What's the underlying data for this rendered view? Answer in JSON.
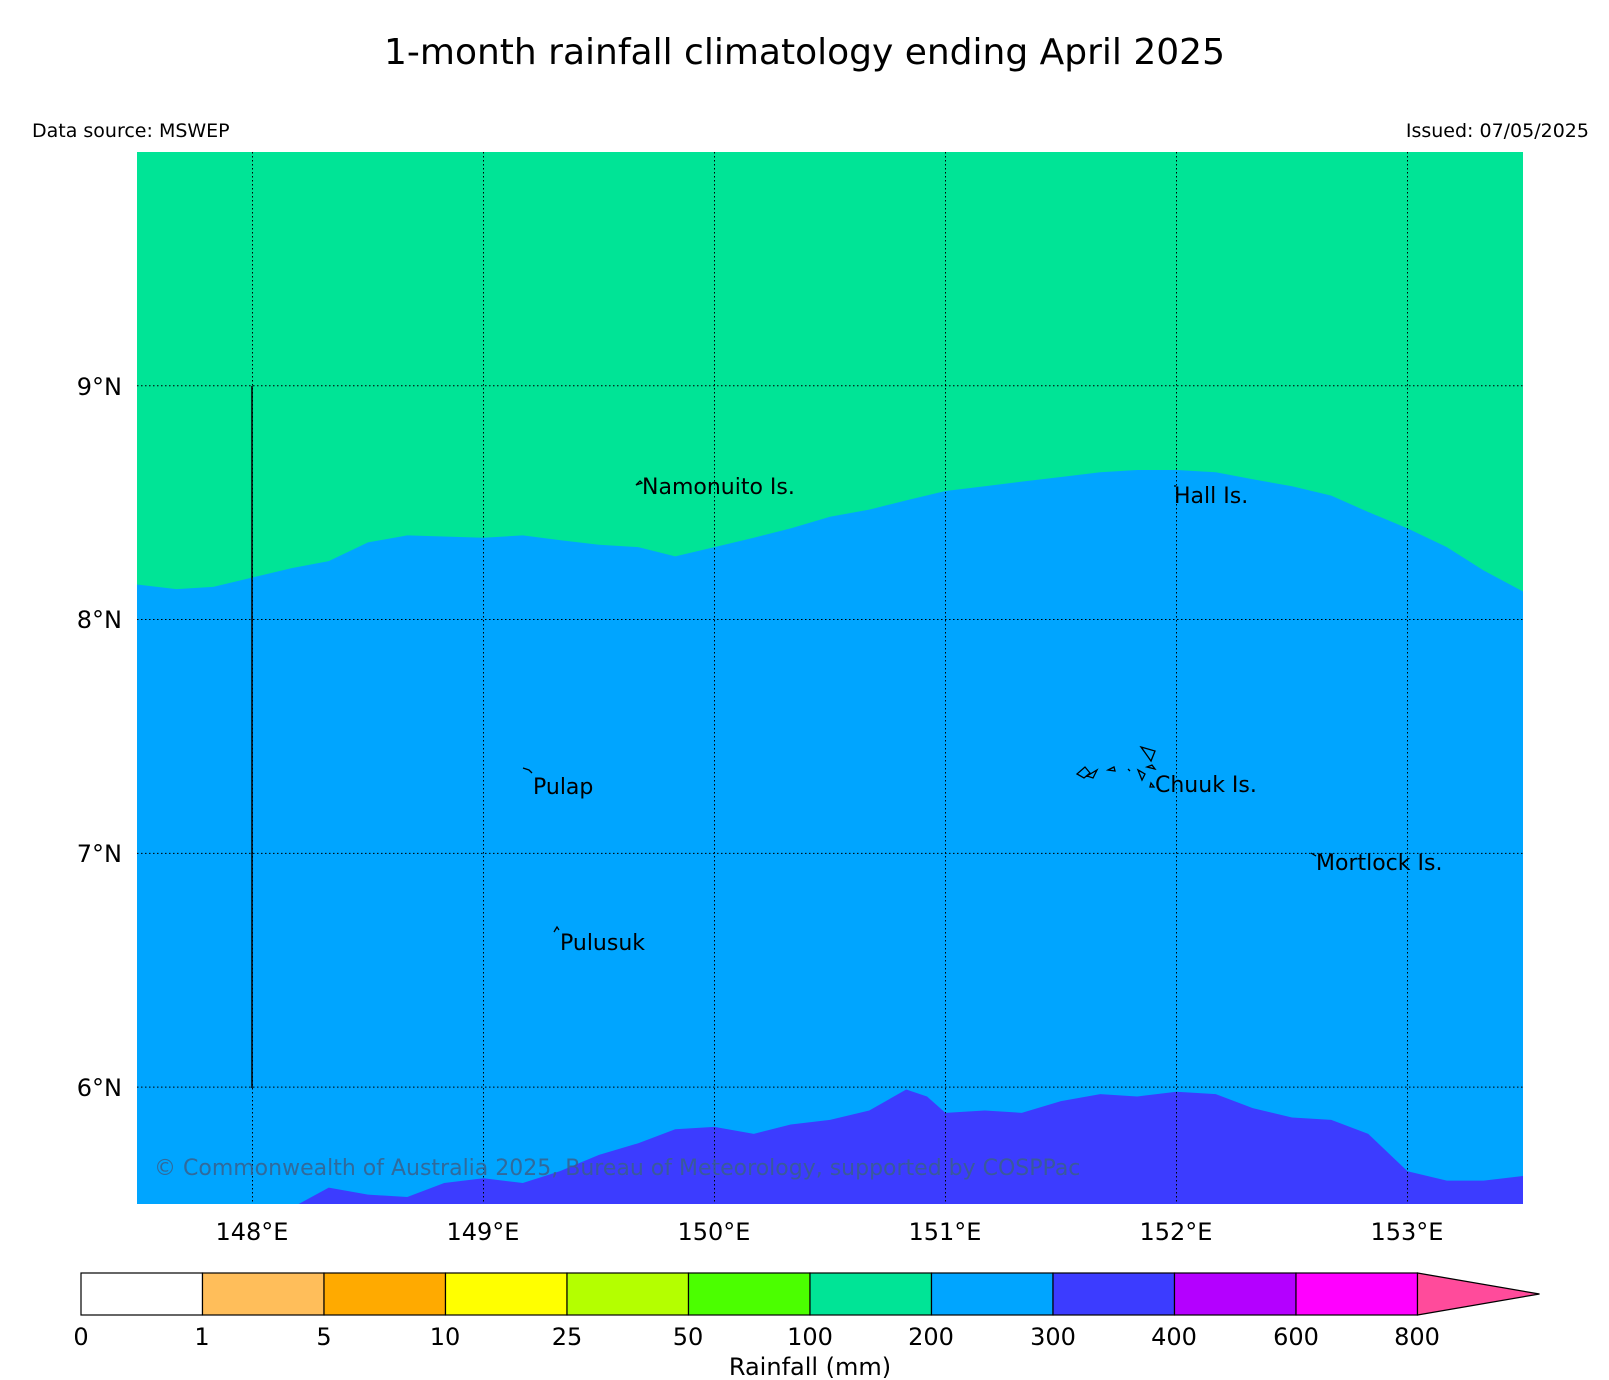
{
  "title": "1-month rainfall climatology ending April 2025",
  "data_source": "Data source: MSWEP",
  "issued": "Issued: 07/05/2025",
  "copyright": "© Commonwealth of Australia 2025, Bureau of Meteorology, supported by COSPPac",
  "map": {
    "lon_range": [
      147.5,
      153.5
    ],
    "lat_range": [
      5.5,
      10.0
    ],
    "lon_ticks": [
      "148°E",
      "149°E",
      "150°E",
      "151°E",
      "152°E",
      "153°E"
    ],
    "lat_ticks": [
      "9°N",
      "8°N",
      "7°N",
      "6°N"
    ],
    "grid": true,
    "places": [
      {
        "name": "Namonuito Is."
      },
      {
        "name": "Hall Is."
      },
      {
        "name": "Pulap"
      },
      {
        "name": "Chuuk Is."
      },
      {
        "name": "Mortlock Is."
      },
      {
        "name": "Pulusuk"
      }
    ]
  },
  "legend": {
    "label": "Rainfall (mm)",
    "ticks": [
      "0",
      "1",
      "5",
      "10",
      "25",
      "50",
      "100",
      "200",
      "300",
      "400",
      "600",
      "800"
    ],
    "colors": [
      "#ffffff",
      "#ffbe5a",
      "#ffaa00",
      "#ffff00",
      "#b4ff00",
      "#4bff00",
      "#00e496",
      "#00a5ff",
      "#3c3cff",
      "#b400ff",
      "#ff00ff"
    ],
    "overflow_color": "#ff4b9b"
  },
  "chart_data": {
    "type": "heatmap",
    "variable": "Rainfall (mm)",
    "xlabel": "",
    "ylabel": "",
    "xlim": [
      147.5,
      153.5
    ],
    "ylim": [
      5.5,
      10.0
    ],
    "zones": [
      {
        "range": "100-200",
        "color": "#00e496",
        "region": "north of ~8.1–8.6°N"
      },
      {
        "range": "200-300",
        "color": "#00a5ff",
        "region": "central band"
      },
      {
        "range": "300-400",
        "color": "#3c3cff",
        "region": "south of ~5.6–6.0°N"
      }
    ],
    "boundary_200mm": [
      [
        147.5,
        8.15
      ],
      [
        147.67,
        8.13
      ],
      [
        147.83,
        8.14
      ],
      [
        148.0,
        8.18
      ],
      [
        148.17,
        8.22
      ],
      [
        148.33,
        8.25
      ],
      [
        148.5,
        8.33
      ],
      [
        148.67,
        8.36
      ],
      [
        149.0,
        8.35
      ],
      [
        149.17,
        8.36
      ],
      [
        149.33,
        8.34
      ],
      [
        149.5,
        8.32
      ],
      [
        149.67,
        8.31
      ],
      [
        149.83,
        8.27
      ],
      [
        150.0,
        8.31
      ],
      [
        150.17,
        8.35
      ],
      [
        150.33,
        8.39
      ],
      [
        150.5,
        8.44
      ],
      [
        150.67,
        8.47
      ],
      [
        150.83,
        8.51
      ],
      [
        151.0,
        8.55
      ],
      [
        151.17,
        8.57
      ],
      [
        151.33,
        8.59
      ],
      [
        151.5,
        8.61
      ],
      [
        151.67,
        8.63
      ],
      [
        151.83,
        8.64
      ],
      [
        152.0,
        8.64
      ],
      [
        152.17,
        8.63
      ],
      [
        152.33,
        8.6
      ],
      [
        152.5,
        8.57
      ],
      [
        152.67,
        8.53
      ],
      [
        152.83,
        8.46
      ],
      [
        153.0,
        8.39
      ],
      [
        153.17,
        8.31
      ],
      [
        153.33,
        8.21
      ],
      [
        153.5,
        8.12
      ]
    ],
    "boundary_300mm": [
      [
        148.2,
        5.5
      ],
      [
        148.33,
        5.57
      ],
      [
        148.5,
        5.54
      ],
      [
        148.67,
        5.53
      ],
      [
        148.83,
        5.59
      ],
      [
        149.0,
        5.61
      ],
      [
        149.17,
        5.59
      ],
      [
        149.33,
        5.64
      ],
      [
        149.5,
        5.71
      ],
      [
        149.67,
        5.76
      ],
      [
        149.83,
        5.82
      ],
      [
        150.0,
        5.83
      ],
      [
        150.17,
        5.8
      ],
      [
        150.33,
        5.84
      ],
      [
        150.5,
        5.86
      ],
      [
        150.67,
        5.9
      ],
      [
        150.83,
        5.99
      ],
      [
        150.92,
        5.96
      ],
      [
        151.0,
        5.89
      ],
      [
        151.17,
        5.9
      ],
      [
        151.33,
        5.89
      ],
      [
        151.5,
        5.94
      ],
      [
        151.67,
        5.97
      ],
      [
        151.83,
        5.96
      ],
      [
        152.0,
        5.98
      ],
      [
        152.17,
        5.97
      ],
      [
        152.33,
        5.91
      ],
      [
        152.5,
        5.87
      ],
      [
        152.67,
        5.86
      ],
      [
        152.83,
        5.8
      ],
      [
        153.0,
        5.64
      ],
      [
        153.17,
        5.6
      ],
      [
        153.33,
        5.6
      ],
      [
        153.5,
        5.62
      ]
    ]
  }
}
